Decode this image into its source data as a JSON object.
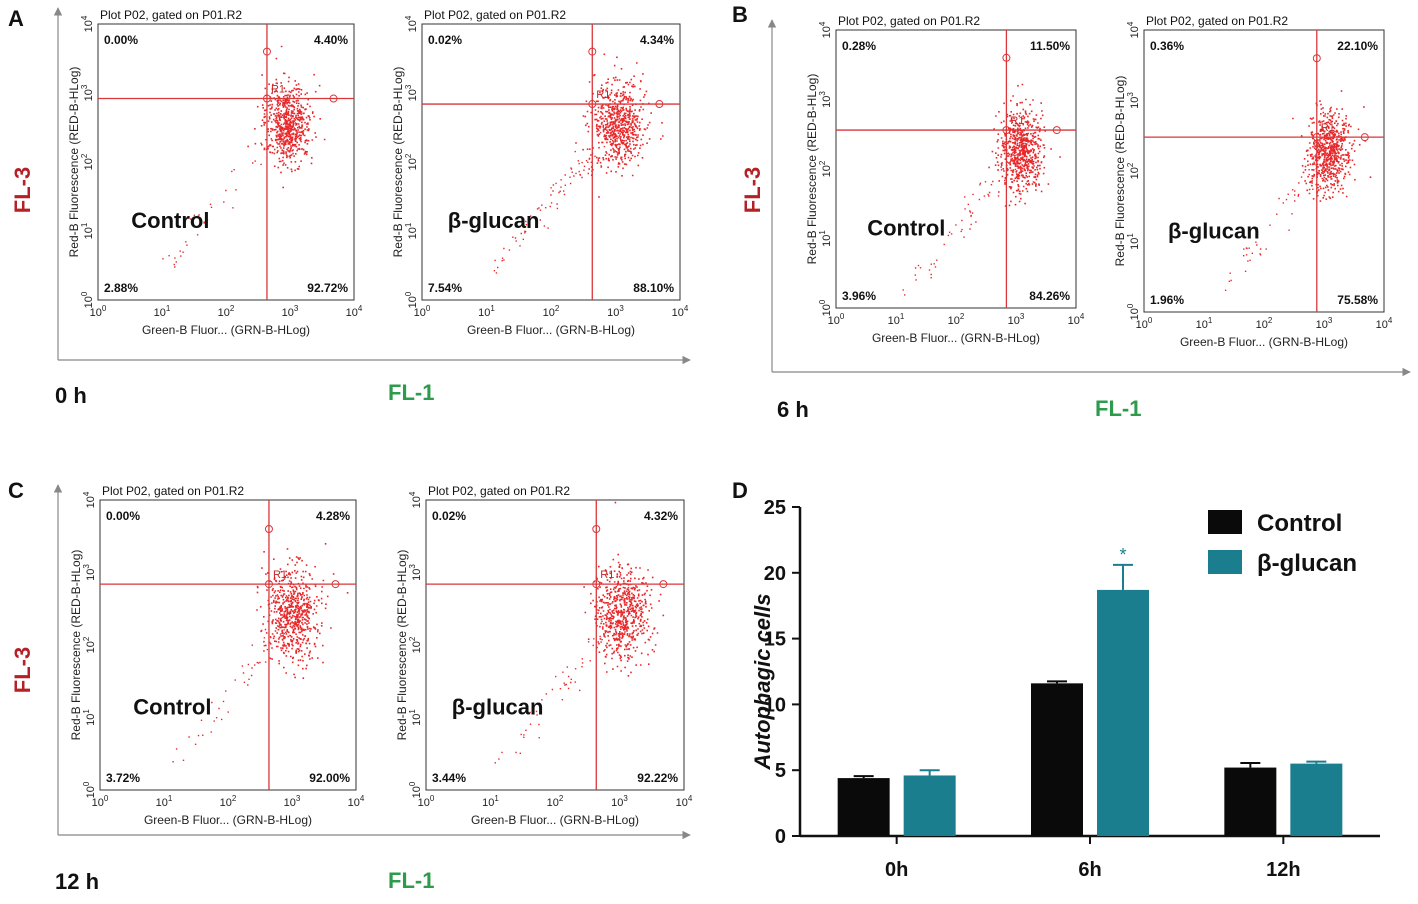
{
  "panels": [
    {
      "letter": "A",
      "time": "0 h",
      "fl3": "FL-3",
      "fl1": "FL-1",
      "plots": [
        {
          "title": "Plot P02, gated on P01.R2",
          "condition": "Control",
          "region": "R1",
          "ul": "0.00%",
          "ur": "4.40%",
          "ll": "2.88%",
          "lr": "92.72%"
        },
        {
          "title": "Plot P02, gated on P01.R2",
          "condition": "β-glucan",
          "region": "R1",
          "ul": "0.02%",
          "ur": "4.34%",
          "ll": "7.54%",
          "lr": "88.10%"
        }
      ]
    },
    {
      "letter": "B",
      "time": "6 h",
      "fl3": "FL-3",
      "fl1": "FL-1",
      "plots": [
        {
          "title": "Plot P02, gated on P01.R2",
          "condition": "Control",
          "region": "R1",
          "ul": "0.28%",
          "ur": "11.50%",
          "ll": "3.96%",
          "lr": "84.26%"
        },
        {
          "title": "Plot P02, gated on P01.R2",
          "condition": "β-glucan",
          "region": "R1",
          "ul": "0.36%",
          "ur": "22.10%",
          "ll": "1.96%",
          "lr": "75.58%"
        }
      ]
    },
    {
      "letter": "C",
      "time": "12 h",
      "fl3": "FL-3",
      "fl1": "FL-1",
      "plots": [
        {
          "title": "Plot P02, gated on P01.R2",
          "condition": "Control",
          "region": "R1",
          "ul": "0.00%",
          "ur": "4.28%",
          "ll": "3.72%",
          "lr": "92.00%"
        },
        {
          "title": "Plot P02, gated on P01.R2",
          "condition": "β-glucan",
          "region": "R1",
          "ul": "0.02%",
          "ur": "4.32%",
          "ll": "3.44%",
          "lr": "92.22%"
        }
      ]
    }
  ],
  "scatter_axes": {
    "xlabel": "Green-B Fluor... (GRN-B-HLog)",
    "ylabel": "Red-B Fluorescence (RED-B-HLog)",
    "tick_base": "10",
    "tick_exponents": [
      "0",
      "1",
      "2",
      "3",
      "4"
    ]
  },
  "chart_data": {
    "type": "bar",
    "panel_letter": "D",
    "title": "",
    "xlabel": "",
    "ylabel": "Autophagic cells",
    "categories": [
      "0h",
      "6h",
      "12h"
    ],
    "series": [
      {
        "name": "Control",
        "color": "#0a0a0a",
        "values": [
          4.4,
          11.6,
          5.2
        ],
        "errors": [
          0.15,
          0.15,
          0.35
        ]
      },
      {
        "name": "β-glucan",
        "color": "#1b7e8e",
        "values": [
          4.6,
          18.7,
          5.5
        ],
        "errors": [
          0.4,
          1.9,
          0.15
        ]
      }
    ],
    "ylim": [
      0,
      25
    ],
    "yticks": [
      0,
      5,
      10,
      15,
      20,
      25
    ],
    "annotations": [
      {
        "category": "6h",
        "series": "β-glucan",
        "text": "*"
      }
    ],
    "legend_position": "top-right"
  }
}
